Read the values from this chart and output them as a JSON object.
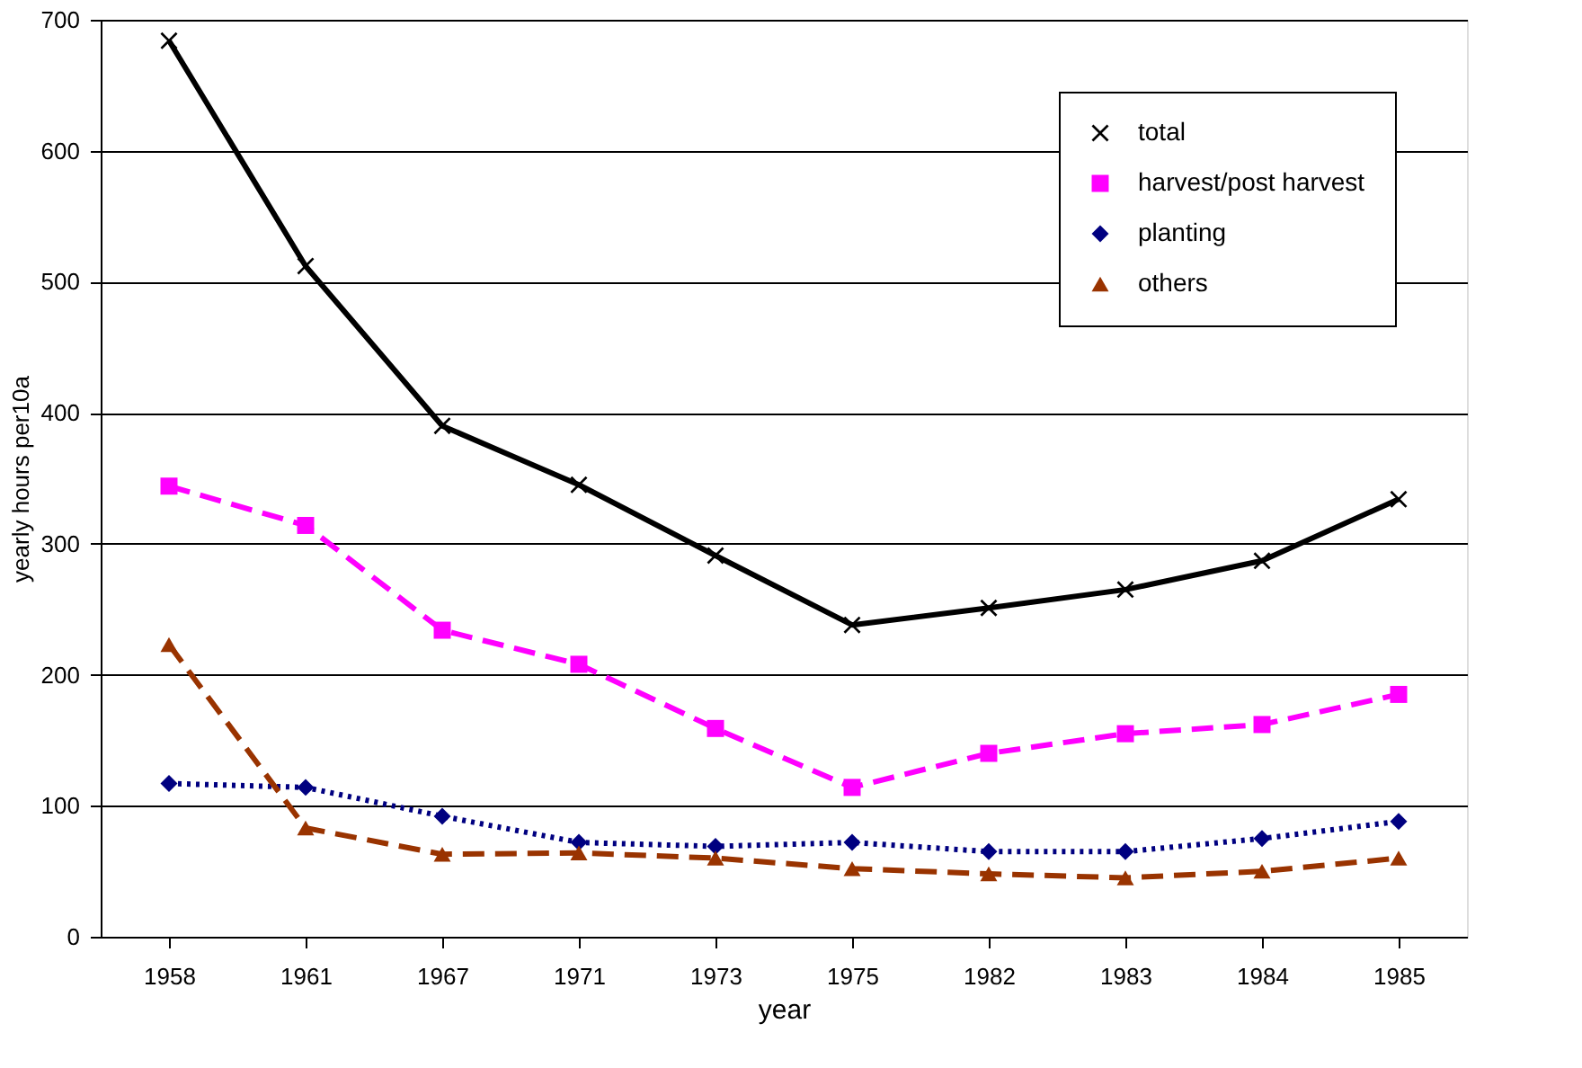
{
  "chart_data": {
    "type": "line",
    "xlabel": "year",
    "ylabel": "yearly hours per10a",
    "categories": [
      "1958",
      "1961",
      "1967",
      "1971",
      "1973",
      "1975",
      "1982",
      "1983",
      "1984",
      "1985"
    ],
    "series": [
      {
        "name": "total",
        "color": "#000000",
        "marker": "cross",
        "line_style": "solid",
        "values": [
          684,
          512,
          390,
          345,
          291,
          238,
          251,
          265,
          287,
          334
        ]
      },
      {
        "name": "harvest/post harvest",
        "color": "#ff00ff",
        "marker": "square",
        "line_style": "dashed",
        "values": [
          344,
          314,
          234,
          208,
          159,
          114,
          140,
          155,
          162,
          185
        ]
      },
      {
        "name": "planting",
        "color": "#000080",
        "marker": "diamond",
        "line_style": "dotted",
        "values": [
          117,
          114,
          92,
          72,
          69,
          72,
          65,
          65,
          75,
          88
        ]
      },
      {
        "name": "others",
        "color": "#993300",
        "marker": "triangle",
        "line_style": "dashed",
        "values": [
          223,
          83,
          63,
          64,
          60,
          52,
          48,
          45,
          50,
          60
        ]
      }
    ],
    "ylim": [
      0,
      700
    ],
    "yticks": [
      0,
      100,
      200,
      300,
      400,
      500,
      600,
      700
    ],
    "grid": "y",
    "legend": "top right"
  }
}
